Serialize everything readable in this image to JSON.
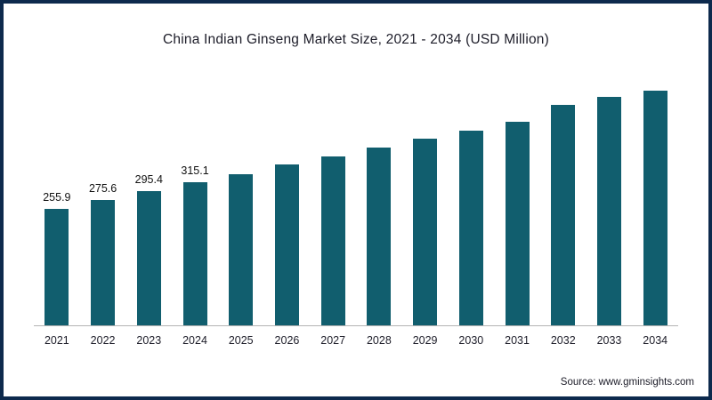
{
  "page": {
    "source_text": "Source: www.gminsights.com"
  },
  "colors": {
    "bar": "#115e6e",
    "border": "#0d2a4d",
    "axis": "#b3b3b3"
  },
  "chart_data": {
    "type": "bar",
    "title": "China Indian Ginseng Market Size, 2021 - 2034 (USD Million)",
    "categories": [
      "2021",
      "2022",
      "2023",
      "2024",
      "2025",
      "2026",
      "2027",
      "2028",
      "2029",
      "2030",
      "2031",
      "2032",
      "2033",
      "2034"
    ],
    "values": [
      255.9,
      275.6,
      295.4,
      315.1,
      333.5,
      354,
      373,
      392,
      411,
      430,
      449,
      487,
      503,
      517
    ],
    "data_labels": [
      "255.9",
      "275.6",
      "295.4",
      "315.1",
      "",
      "",
      "",
      "",
      "",
      "",
      "",
      "",
      "",
      ""
    ],
    "xlabel": "",
    "ylabel": "USD Million",
    "ylim": [
      0,
      600
    ],
    "grid": false,
    "legend": false,
    "bar_color": "#115e6e"
  }
}
